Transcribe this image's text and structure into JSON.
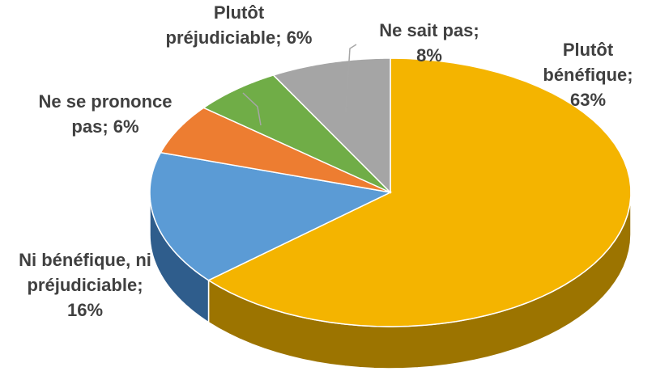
{
  "chart_data": {
    "type": "pie3d",
    "categories": [
      "Plutôt bénéfique",
      "Ni bénéfique, ni préjudiciable",
      "Ne se prononce pas",
      "Plutôt préjudiciable",
      "Ne sait pas"
    ],
    "values": [
      63,
      16,
      6,
      6,
      8
    ],
    "value_labels": [
      "63%",
      "16%",
      "6%",
      "6%",
      "8%"
    ],
    "label_separator": ";",
    "colors": [
      "#f4b400",
      "#5b9bd5",
      "#ed7d31",
      "#70ad47",
      "#a5a5a5"
    ],
    "side_colors": [
      "#9c7400",
      "#2f5d8c",
      "#a4501a",
      "#457a28",
      "#6e6e6e"
    ]
  }
}
